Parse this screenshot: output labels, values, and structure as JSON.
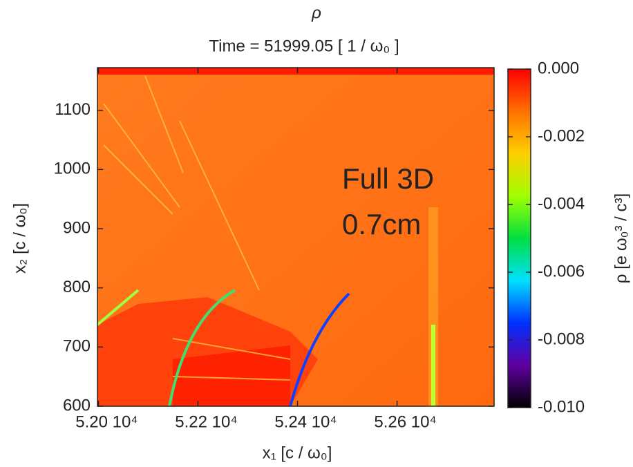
{
  "chart_data": {
    "type": "heatmap",
    "title": "ρ",
    "subtitle": "Time = 51999.05 [ 1 / ω₀ ]",
    "x_label": "x₁ [c / ω₀]",
    "y_label": "x₂ [c / ω₀]",
    "annotations": [
      "Full 3D",
      "0.7cm"
    ],
    "xlim": [
      51998,
      52795
    ],
    "xticks": [
      {
        "value": 52000,
        "label": "5.20 10⁴"
      },
      {
        "value": 52200,
        "label": "5.22 10⁴"
      },
      {
        "value": 52400,
        "label": "5.24 10⁴"
      },
      {
        "value": 52600,
        "label": "5.26 10⁴"
      }
    ],
    "ylim": [
      600,
      1172
    ],
    "yticks": [
      600,
      700,
      800,
      900,
      1000,
      1100
    ],
    "colorbar": {
      "label": "ρ [e ω₀³ / c³]",
      "lim": [
        -0.01,
        0
      ],
      "ticks": [
        {
          "value": 0,
          "label": "0.000"
        },
        {
          "value": -0.002,
          "label": "-0.002"
        },
        {
          "value": -0.004,
          "label": "-0.004"
        },
        {
          "value": -0.006,
          "label": "-0.006"
        },
        {
          "value": -0.008,
          "label": "-0.008"
        },
        {
          "value": -0.01,
          "label": "-0.010"
        }
      ],
      "colors": [
        "#ff0000",
        "#ff7000",
        "#ffd000",
        "#a0ff00",
        "#00e040",
        "#00e0ff",
        "#0030ff",
        "#6000a0",
        "#000000"
      ]
    }
  }
}
